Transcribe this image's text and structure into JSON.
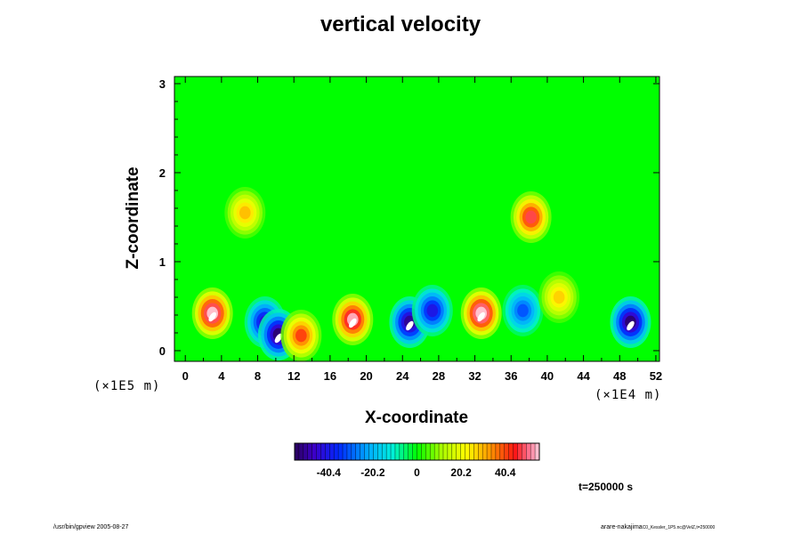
{
  "chart_data": {
    "type": "heatmap",
    "title": "vertical velocity",
    "xlabel": "X-coordinate",
    "ylabel": "Z-coordinate",
    "x_scale_note": "(×1E4 m)",
    "y_scale_note": "(×1E5 m)",
    "x_ticks": [
      0,
      4,
      8,
      12,
      16,
      20,
      24,
      28,
      32,
      36,
      40,
      44,
      48,
      52
    ],
    "y_ticks": [
      0,
      1,
      2,
      3
    ],
    "xlim": [
      -1.2,
      52.4
    ],
    "ylim": [
      -0.12,
      3.08
    ],
    "colorbar": {
      "ticks": [
        "-40.4",
        "-20.2",
        "0",
        "20.2",
        "40.4"
      ],
      "range": [
        -56,
        56
      ]
    },
    "features": [
      {
        "kind": "updraft",
        "x": 3.0,
        "z": 0.42,
        "value": 58
      },
      {
        "kind": "downdraft",
        "x": 8.8,
        "z": 0.32,
        "value": -45
      },
      {
        "kind": "downdraft",
        "x": 10.3,
        "z": 0.18,
        "value": -55
      },
      {
        "kind": "updraft",
        "x": 12.8,
        "z": 0.17,
        "value": 42
      },
      {
        "kind": "updraft",
        "x": 18.5,
        "z": 0.35,
        "value": 55
      },
      {
        "kind": "downdraft",
        "x": 24.8,
        "z": 0.32,
        "value": -52
      },
      {
        "kind": "downdraft",
        "x": 27.3,
        "z": 0.45,
        "value": -42
      },
      {
        "kind": "updraft",
        "x": 32.7,
        "z": 0.42,
        "value": 60
      },
      {
        "kind": "downdraft",
        "x": 37.3,
        "z": 0.45,
        "value": -32
      },
      {
        "kind": "updraft",
        "x": 41.3,
        "z": 0.6,
        "value": 28
      },
      {
        "kind": "downdraft",
        "x": 49.2,
        "z": 0.32,
        "value": -55
      },
      {
        "kind": "updraft",
        "x": 6.6,
        "z": 1.55,
        "value": 30
      },
      {
        "kind": "updraft",
        "x": 38.2,
        "z": 1.5,
        "value": 48
      }
    ]
  },
  "timestamp": "t=250000 s",
  "footer": {
    "left": "/usr/bin/gpview 2005-08-27",
    "right_main": "arare-nakajima",
    "right_small": "C0_Kessler_1P5.nc@VelZ,t=250000"
  }
}
